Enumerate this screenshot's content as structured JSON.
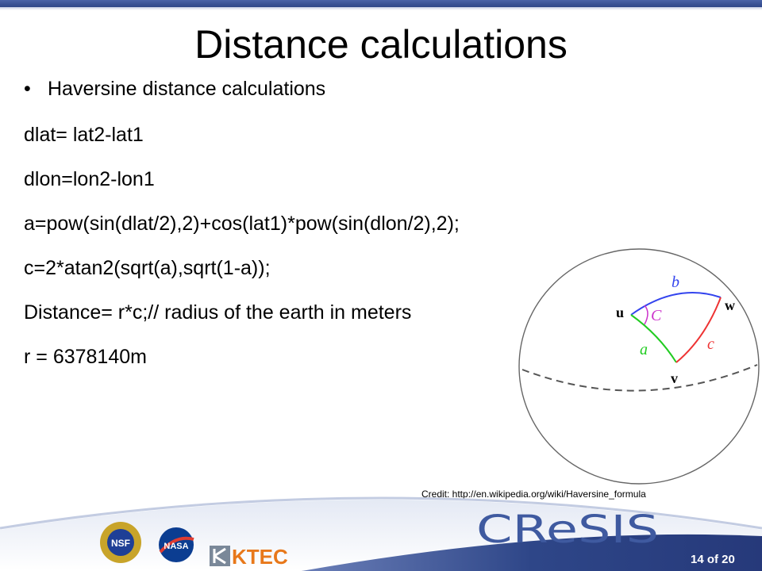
{
  "slide": {
    "title": "Distance calculations",
    "bullet": "Haversine distance calculations",
    "lines": [
      "dlat= lat2-lat1",
      "dlon=lon2-lon1",
      "a=pow(sin(dlat/2),2)+cos(lat1)*pow(sin(dlon/2),2);",
      "c=2*atan2(sqrt(a),sqrt(1-a));",
      "Distance= r*c;// radius of the earth in meters",
      "r = 6378140m"
    ],
    "credit": "Credit: http://en.wikipedia.org/wiki/Haversine_formula"
  },
  "diagram": {
    "vertices": {
      "u": "u",
      "w": "w",
      "v": "v"
    },
    "edges": {
      "a": "a",
      "b": "b",
      "c": "c"
    },
    "angle": "C",
    "colors": {
      "a": "#22cc22",
      "b": "#3344ee",
      "c": "#ee3333",
      "angle": "#cc33cc"
    }
  },
  "footer": {
    "logos": [
      "NSF",
      "NASA",
      "KTEC"
    ],
    "brand": "CReSIS",
    "page": "14 of 20",
    "colors": {
      "bar": "#2e4688",
      "ktec": "#e8781a"
    }
  }
}
